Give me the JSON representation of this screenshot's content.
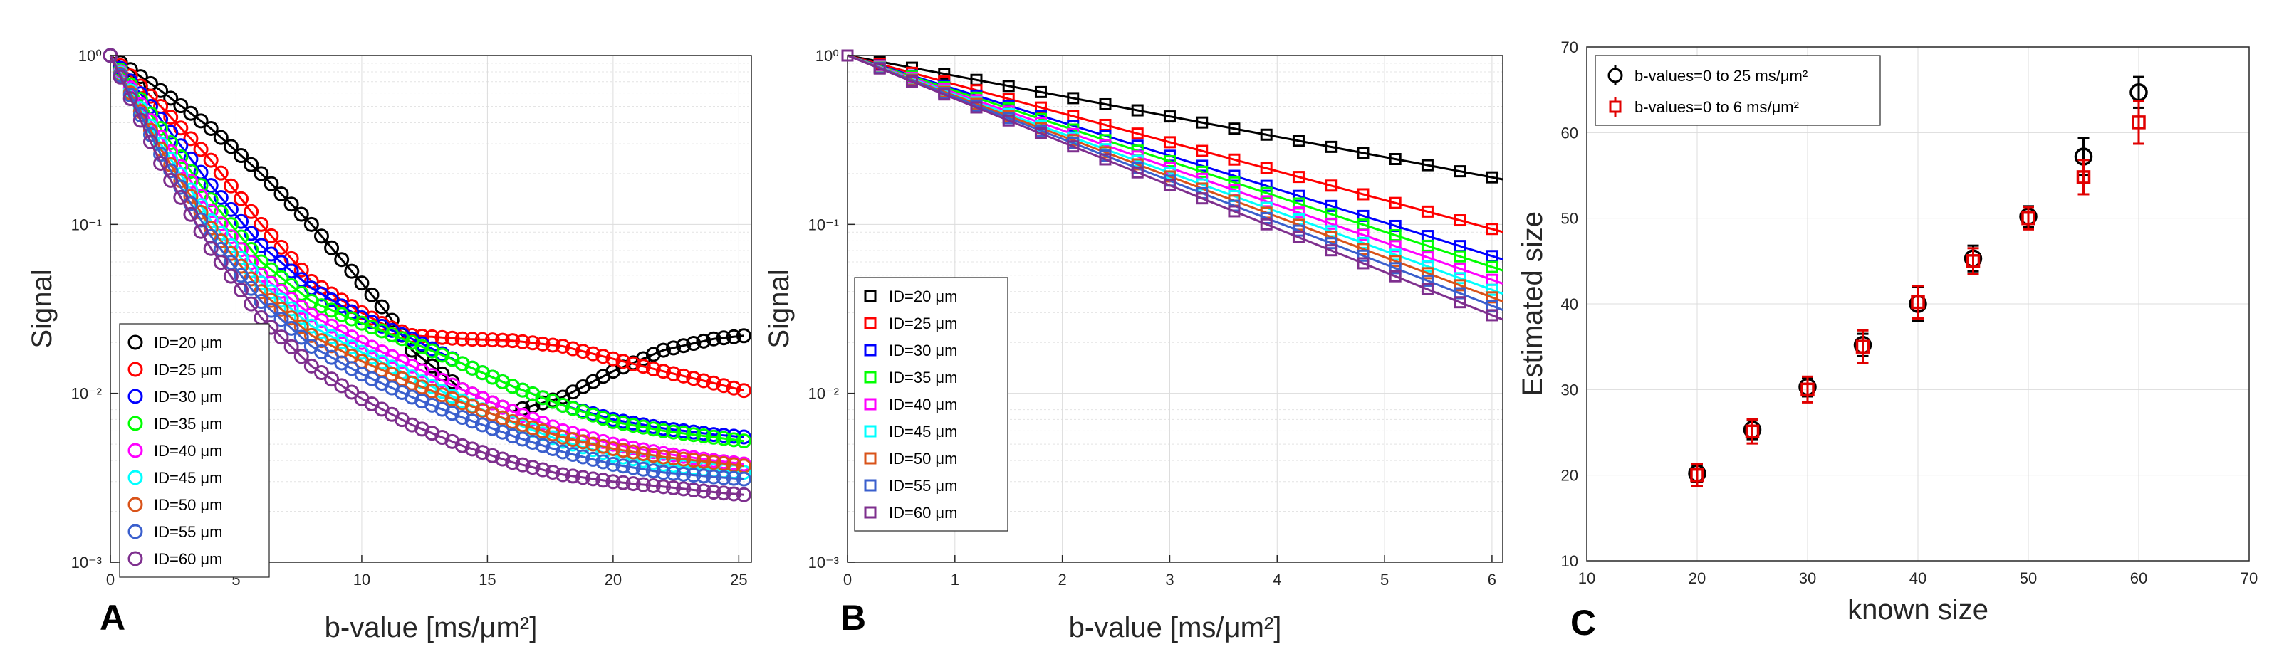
{
  "chart_data": [
    {
      "panel": "A",
      "type": "scatter",
      "xlabel": "b-value [ms/μm²]",
      "ylabel": "Signal",
      "xlim": [
        0,
        25.5
      ],
      "ylim": [
        0.001,
        1
      ],
      "yscale": "log",
      "xticks": [
        "0",
        "5",
        "10",
        "15",
        "20",
        "25"
      ],
      "yticks": [
        "10⁰",
        "10⁻¹",
        "10⁻²",
        "10⁻³"
      ],
      "grid": true,
      "legend_position": "bottom-left",
      "series": [
        {
          "name": "ID=20 μm",
          "color": "#000000",
          "x": [
            0,
            2,
            4,
            6,
            8,
            10,
            11,
            12,
            14,
            16,
            18,
            20,
            22,
            24,
            25.3
          ],
          "y": [
            1,
            0.62,
            0.37,
            0.2,
            0.1,
            0.045,
            0.03,
            0.018,
            0.0105,
            0.0078,
            0.0095,
            0.0135,
            0.018,
            0.021,
            0.022
          ]
        },
        {
          "name": "ID=25 μm",
          "color": "#ff0000",
          "x": [
            0,
            2,
            4,
            6,
            8,
            10,
            11,
            12,
            14,
            16,
            18,
            20,
            22,
            24,
            25.3
          ],
          "y": [
            1,
            0.5,
            0.24,
            0.1,
            0.046,
            0.03,
            0.025,
            0.022,
            0.021,
            0.0205,
            0.019,
            0.016,
            0.0135,
            0.0115,
            0.0103
          ]
        },
        {
          "name": "ID=30 μm",
          "color": "#0000ff",
          "x": [
            0,
            2,
            4,
            6,
            8,
            10,
            12,
            14,
            16,
            18,
            20,
            22,
            24,
            25.3
          ],
          "y": [
            1,
            0.42,
            0.17,
            0.075,
            0.042,
            0.028,
            0.021,
            0.015,
            0.011,
            0.0085,
            0.007,
            0.0062,
            0.0057,
            0.0055
          ]
        },
        {
          "name": "ID=35 μm",
          "color": "#00ff00",
          "x": [
            0,
            2,
            4,
            6,
            8,
            10,
            12,
            14,
            16,
            18,
            20,
            22,
            24,
            25.3
          ],
          "y": [
            1,
            0.37,
            0.14,
            0.06,
            0.035,
            0.026,
            0.02,
            0.015,
            0.011,
            0.0085,
            0.0068,
            0.006,
            0.0055,
            0.0052
          ]
        },
        {
          "name": "ID=40 μm",
          "color": "#ff00ff",
          "x": [
            0,
            2,
            4,
            6,
            8,
            10,
            12,
            14,
            16,
            18,
            20,
            22,
            24,
            25.3
          ],
          "y": [
            1,
            0.33,
            0.12,
            0.05,
            0.029,
            0.02,
            0.0145,
            0.0105,
            0.0078,
            0.006,
            0.005,
            0.0044,
            0.004,
            0.0038
          ]
        },
        {
          "name": "ID=45 μm",
          "color": "#00ffff",
          "x": [
            0,
            2,
            4,
            6,
            8,
            10,
            12,
            14,
            16,
            18,
            20,
            22,
            24,
            25.3
          ],
          "y": [
            1,
            0.3,
            0.105,
            0.045,
            0.025,
            0.0175,
            0.0125,
            0.009,
            0.0067,
            0.0052,
            0.0043,
            0.0038,
            0.0035,
            0.0034
          ]
        },
        {
          "name": "ID=50 μm",
          "color": "#d95319",
          "x": [
            0,
            2,
            4,
            6,
            8,
            10,
            12,
            14,
            16,
            18,
            20,
            22,
            24,
            25.3
          ],
          "y": [
            1,
            0.28,
            0.095,
            0.04,
            0.022,
            0.0155,
            0.0115,
            0.0088,
            0.0068,
            0.0055,
            0.0047,
            0.0042,
            0.0039,
            0.0037
          ]
        },
        {
          "name": "ID=55 μm",
          "color": "#3a5fcd",
          "x": [
            0,
            2,
            4,
            6,
            8,
            10,
            12,
            14,
            16,
            18,
            20,
            22,
            24,
            25.3
          ],
          "y": [
            1,
            0.26,
            0.085,
            0.035,
            0.019,
            0.013,
            0.0095,
            0.0072,
            0.0056,
            0.0045,
            0.0038,
            0.0034,
            0.0032,
            0.0031
          ]
        },
        {
          "name": "ID=60 μm",
          "color": "#7e2f8e",
          "x": [
            0,
            2,
            4,
            6,
            8,
            10,
            12,
            14,
            16,
            18,
            20,
            22,
            24,
            25.3
          ],
          "y": [
            1,
            0.23,
            0.072,
            0.028,
            0.0145,
            0.0093,
            0.0065,
            0.0049,
            0.0039,
            0.0033,
            0.003,
            0.0028,
            0.0026,
            0.0025
          ]
        }
      ]
    },
    {
      "panel": "B",
      "type": "scatter",
      "xlabel": "b-value [ms/μm²]",
      "ylabel": "Signal",
      "xlim": [
        0,
        6.1
      ],
      "ylim": [
        0.001,
        1
      ],
      "yscale": "log",
      "xticks": [
        "0",
        "1",
        "2",
        "3",
        "4",
        "5",
        "6"
      ],
      "yticks": [
        "10⁰",
        "10⁻¹",
        "10⁻²",
        "10⁻³"
      ],
      "grid": true,
      "legend_position": "bottom-left",
      "x": [
        0,
        0.3,
        0.6,
        0.9,
        1.2,
        1.5,
        1.8,
        2.1,
        2.4,
        2.7,
        3.0,
        3.3,
        3.6,
        3.9,
        4.2,
        4.5,
        4.8,
        5.1,
        5.4,
        5.7,
        6.0
      ],
      "series": [
        {
          "name": "ID=20 μm",
          "color": "#000000",
          "end_value": 0.19
        },
        {
          "name": "ID=25 μm",
          "color": "#ff0000",
          "end_value": 0.094
        },
        {
          "name": "ID=30 μm",
          "color": "#0000ff",
          "end_value": 0.065
        },
        {
          "name": "ID=35 μm",
          "color": "#00ff00",
          "end_value": 0.056
        },
        {
          "name": "ID=40 μm",
          "color": "#ff00ff",
          "end_value": 0.047
        },
        {
          "name": "ID=45 μm",
          "color": "#00ffff",
          "end_value": 0.041
        },
        {
          "name": "ID=50 μm",
          "color": "#d95319",
          "end_value": 0.037
        },
        {
          "name": "ID=55 μm",
          "color": "#3a5fcd",
          "end_value": 0.033
        },
        {
          "name": "ID=60 μm",
          "color": "#7e2f8e",
          "end_value": 0.029
        }
      ]
    },
    {
      "panel": "C",
      "type": "scatter",
      "xlabel": "known size",
      "ylabel": "Estimated size",
      "xlim": [
        10,
        70
      ],
      "ylim": [
        10,
        70
      ],
      "xticks": [
        "10",
        "20",
        "30",
        "40",
        "50",
        "60",
        "70"
      ],
      "yticks": [
        "10",
        "20",
        "30",
        "40",
        "50",
        "60",
        "70"
      ],
      "grid": true,
      "legend_position": "top-left",
      "series": [
        {
          "name": "b-values=0 to 25 ms/μm²",
          "marker": "circle",
          "color": "#000000",
          "x": [
            20,
            25,
            30,
            35,
            40,
            45,
            50,
            55,
            60
          ],
          "y": [
            20.2,
            25.3,
            30.3,
            35.2,
            40.0,
            45.3,
            50.2,
            57.2,
            64.7
          ],
          "err": [
            1.0,
            1.1,
            1.1,
            1.3,
            2.0,
            1.5,
            1.2,
            2.2,
            1.8
          ]
        },
        {
          "name": "b-values=0 to 6 ms/μm²",
          "marker": "square",
          "color": "#e00000",
          "x": [
            20,
            25,
            30,
            35,
            40,
            45,
            50,
            55,
            60
          ],
          "y": [
            20.0,
            25.1,
            30.0,
            35.0,
            40.2,
            45.0,
            50.0,
            54.8,
            61.2
          ],
          "err": [
            1.3,
            1.4,
            1.5,
            1.9,
            1.9,
            1.5,
            1.3,
            2.0,
            2.5
          ]
        }
      ]
    }
  ],
  "panel_labels": [
    "A",
    "B",
    "C"
  ]
}
